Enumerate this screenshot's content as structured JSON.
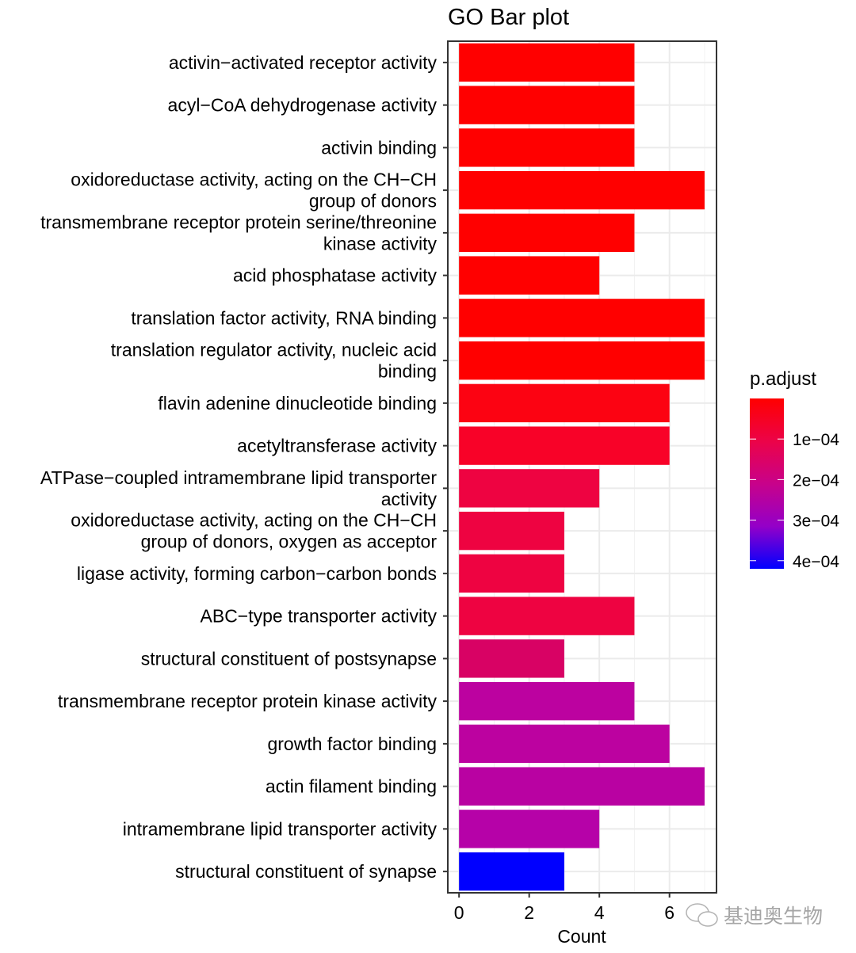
{
  "chart_data": {
    "type": "bar",
    "orientation": "horizontal",
    "title": "GO Bar plot",
    "xlabel": "Count",
    "ylabel": "",
    "xlim": [
      -0.32,
      7.34
    ],
    "xticks": [
      0,
      2,
      4,
      6
    ],
    "grid": true,
    "categories": [
      "activin−activated receptor activity",
      "acyl−CoA dehydrogenase activity",
      "activin binding",
      "oxidoreductase activity, acting on the CH−CH\ngroup of donors",
      "transmembrane receptor protein serine/threonine\nkinase activity",
      "acid phosphatase activity",
      "translation factor activity, RNA binding",
      "translation regulator activity, nucleic acid\nbinding",
      "flavin adenine dinucleotide binding",
      "acetyltransferase activity",
      "ATPase−coupled intramembrane lipid transporter\nactivity",
      "oxidoreductase activity, acting on the CH−CH\ngroup of donors, oxygen as acceptor",
      "ligase activity, forming carbon−carbon bonds",
      "ABC−type transporter activity",
      "structural constituent of postsynapse",
      "transmembrane receptor protein kinase activity",
      "growth factor binding",
      "actin filament binding",
      "intramembrane lipid transporter activity",
      "structural constituent of synapse"
    ],
    "values": [
      5,
      5,
      5,
      7,
      5,
      4,
      7,
      7,
      6,
      6,
      4,
      3,
      3,
      5,
      3,
      5,
      6,
      7,
      4,
      3
    ],
    "p_adjust": [
      1e-06,
      1e-06,
      1e-06,
      1e-06,
      1e-06,
      1e-06,
      1e-06,
      1e-06,
      1.5e-05,
      3e-05,
      6e-05,
      6e-05,
      6e-05,
      6e-05,
      0.00012,
      0.00022,
      0.00022,
      0.00023,
      0.00024,
      0.00042
    ],
    "colors": [
      "#FF0000",
      "#FF0000",
      "#FF0000",
      "#FF0000",
      "#FF0000",
      "#FF0000",
      "#FF0000",
      "#FF0000",
      "#FC0312",
      "#F80228",
      "#EE0341",
      "#EE0341",
      "#EE0341",
      "#EE0341",
      "#D80264",
      "#BC02A0",
      "#BC02A0",
      "#B902A2",
      "#B602A8",
      "#0000FF"
    ],
    "legend": {
      "title": "p.adjust",
      "placement": "right",
      "low_color": "#FF0000",
      "high_color": "#0000FF",
      "range": [
        0,
        0.00042
      ],
      "ticks": [
        0.0001,
        0.0002,
        0.0003,
        0.0004
      ],
      "tick_labels": [
        "1e−04",
        "2e−04",
        "3e−04",
        "4e−04"
      ]
    }
  },
  "watermark": {
    "icon": "wechat-icon",
    "text": "基迪奥生物"
  }
}
